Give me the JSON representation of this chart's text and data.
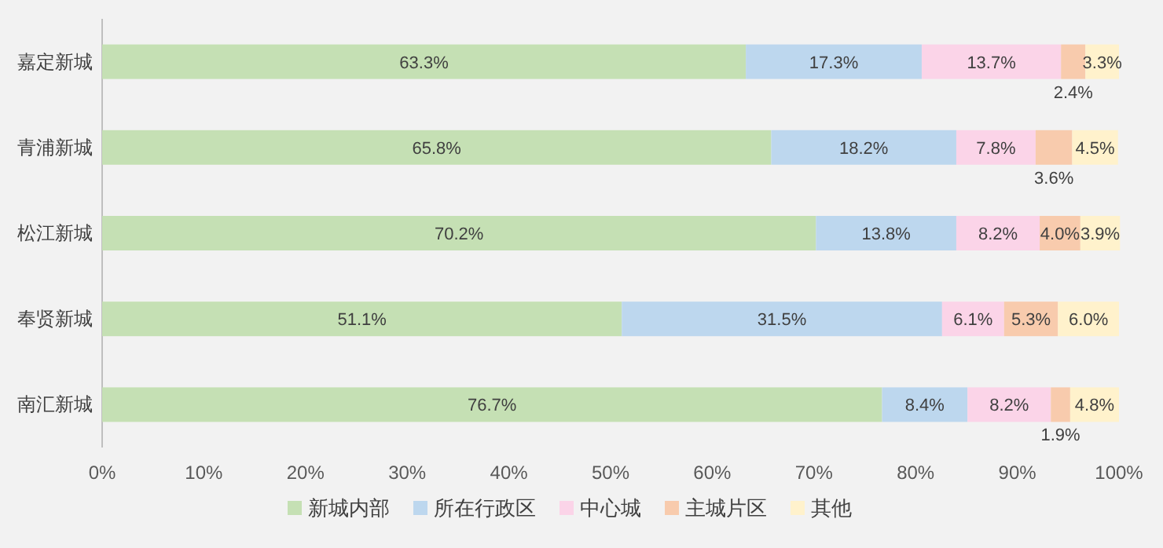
{
  "chart_data": {
    "type": "bar",
    "orientation": "horizontal",
    "stacked": true,
    "legend": "bottom",
    "xlim": [
      0,
      100
    ],
    "xticks": [
      {
        "value": 0,
        "label": "0%"
      },
      {
        "value": 10,
        "label": "10%"
      },
      {
        "value": 20,
        "label": "20%"
      },
      {
        "value": 30,
        "label": "30%"
      },
      {
        "value": 40,
        "label": "40%"
      },
      {
        "value": 50,
        "label": "50%"
      },
      {
        "value": 60,
        "label": "60%"
      },
      {
        "value": 70,
        "label": "70%"
      },
      {
        "value": 80,
        "label": "80%"
      },
      {
        "value": 90,
        "label": "90%"
      },
      {
        "value": 100,
        "label": "100%"
      }
    ],
    "categories": [
      "嘉定新城",
      "青浦新城",
      "松江新城",
      "奉贤新城",
      "南汇新城"
    ],
    "series": [
      {
        "name": "新城内部",
        "color": "#c5e0b4",
        "values": [
          63.3,
          65.8,
          70.2,
          51.1,
          76.7
        ],
        "value_labels": [
          "63.3%",
          "65.8%",
          "70.2%",
          "51.1%",
          "76.7%"
        ]
      },
      {
        "name": "所在行政区",
        "color": "#bdd7ee",
        "values": [
          17.3,
          18.2,
          13.8,
          31.5,
          8.4
        ],
        "value_labels": [
          "17.3%",
          "18.2%",
          "13.8%",
          "31.5%",
          "8.4%"
        ]
      },
      {
        "name": "中心城",
        "color": "#fbd4e8",
        "values": [
          13.7,
          7.8,
          8.2,
          6.1,
          8.2
        ],
        "value_labels": [
          "13.7%",
          "7.8%",
          "8.2%",
          "6.1%",
          "8.2%"
        ]
      },
      {
        "name": "主城片区",
        "color": "#f8cbad",
        "values": [
          2.4,
          3.6,
          4.0,
          5.3,
          1.9
        ],
        "value_labels": [
          "2.4%",
          "3.6%",
          "4.0%",
          "5.3%",
          "1.9%"
        ]
      },
      {
        "name": "其他",
        "color": "#fff2cc",
        "values": [
          3.3,
          4.5,
          3.9,
          6.0,
          4.8
        ],
        "value_labels": [
          "3.3%",
          "4.5%",
          "3.9%",
          "6.0%",
          "4.8%"
        ]
      }
    ]
  }
}
